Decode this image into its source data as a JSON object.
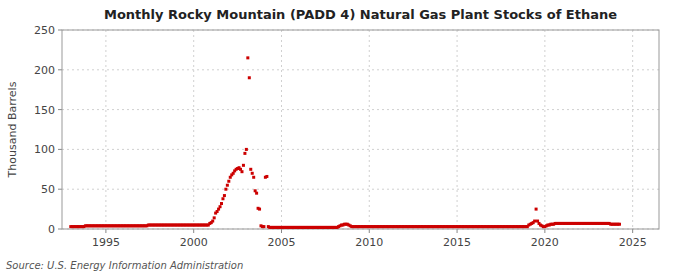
{
  "chart_data": {
    "type": "scatter",
    "title": "Monthly Rocky Mountain (PADD 4) Natural Gas Plant Stocks of Ethane",
    "y_label": "Thousand Barrels",
    "source": "Source: U.S. Energy Information Administration",
    "color": "#CC0000",
    "marker": "square",
    "grid": true,
    "xlim": [
      1992.5,
      2026.5
    ],
    "ylim": [
      0,
      250
    ],
    "xticks": [
      1995,
      2000,
      2005,
      2010,
      2015,
      2020,
      2025
    ],
    "yticks": [
      0,
      50,
      100,
      150,
      200,
      250
    ],
    "x": [
      1993.0,
      1993.083,
      1993.167,
      1993.25,
      1993.333,
      1993.417,
      1993.5,
      1993.583,
      1993.667,
      1993.75,
      1993.833,
      1993.917,
      1994.0,
      1994.083,
      1994.167,
      1994.25,
      1994.333,
      1994.417,
      1994.5,
      1994.583,
      1994.667,
      1994.75,
      1994.833,
      1994.917,
      1995.0,
      1995.083,
      1995.167,
      1995.25,
      1995.333,
      1995.417,
      1995.5,
      1995.583,
      1995.667,
      1995.75,
      1995.833,
      1995.917,
      1996.0,
      1996.083,
      1996.167,
      1996.25,
      1996.333,
      1996.417,
      1996.5,
      1996.583,
      1996.667,
      1996.75,
      1996.833,
      1996.917,
      1997.0,
      1997.083,
      1997.167,
      1997.25,
      1997.333,
      1997.417,
      1997.5,
      1997.583,
      1997.667,
      1997.75,
      1997.833,
      1997.917,
      1998.0,
      1998.083,
      1998.167,
      1998.25,
      1998.333,
      1998.417,
      1998.5,
      1998.583,
      1998.667,
      1998.75,
      1998.833,
      1998.917,
      1999.0,
      1999.083,
      1999.167,
      1999.25,
      1999.333,
      1999.417,
      1999.5,
      1999.583,
      1999.667,
      1999.75,
      1999.833,
      1999.917,
      2000.0,
      2000.083,
      2000.167,
      2000.25,
      2000.333,
      2000.417,
      2000.5,
      2000.583,
      2000.667,
      2000.75,
      2000.833,
      2000.917,
      2001.0,
      2001.083,
      2001.167,
      2001.25,
      2001.333,
      2001.417,
      2001.5,
      2001.583,
      2001.667,
      2001.75,
      2001.833,
      2001.917,
      2002.0,
      2002.083,
      2002.167,
      2002.25,
      2002.333,
      2002.417,
      2002.5,
      2002.583,
      2002.667,
      2002.75,
      2002.833,
      2002.917,
      2003.0,
      2003.083,
      2003.167,
      2003.25,
      2003.333,
      2003.417,
      2003.5,
      2003.583,
      2003.667,
      2003.75,
      2003.833,
      2003.917,
      2004.0,
      2004.083,
      2004.167,
      2004.25,
      2004.333,
      2004.417,
      2004.5,
      2004.583,
      2004.667,
      2004.75,
      2004.833,
      2004.917,
      2005.0,
      2005.083,
      2005.167,
      2005.25,
      2005.333,
      2005.417,
      2005.5,
      2005.583,
      2005.667,
      2005.75,
      2005.833,
      2005.917,
      2006.0,
      2006.083,
      2006.167,
      2006.25,
      2006.333,
      2006.417,
      2006.5,
      2006.583,
      2006.667,
      2006.75,
      2006.833,
      2006.917,
      2007.0,
      2007.083,
      2007.167,
      2007.25,
      2007.333,
      2007.417,
      2007.5,
      2007.583,
      2007.667,
      2007.75,
      2007.833,
      2007.917,
      2008.0,
      2008.083,
      2008.167,
      2008.25,
      2008.333,
      2008.417,
      2008.5,
      2008.583,
      2008.667,
      2008.75,
      2008.833,
      2008.917,
      2009.0,
      2009.083,
      2009.167,
      2009.25,
      2009.333,
      2009.417,
      2009.5,
      2009.583,
      2009.667,
      2009.75,
      2009.833,
      2009.917,
      2010.0,
      2010.083,
      2010.167,
      2010.25,
      2010.333,
      2010.417,
      2010.5,
      2010.583,
      2010.667,
      2010.75,
      2010.833,
      2010.917,
      2011.0,
      2011.083,
      2011.167,
      2011.25,
      2011.333,
      2011.417,
      2011.5,
      2011.583,
      2011.667,
      2011.75,
      2011.833,
      2011.917,
      2012.0,
      2012.083,
      2012.167,
      2012.25,
      2012.333,
      2012.417,
      2012.5,
      2012.583,
      2012.667,
      2012.75,
      2012.833,
      2012.917,
      2013.0,
      2013.083,
      2013.167,
      2013.25,
      2013.333,
      2013.417,
      2013.5,
      2013.583,
      2013.667,
      2013.75,
      2013.833,
      2013.917,
      2014.0,
      2014.083,
      2014.167,
      2014.25,
      2014.333,
      2014.417,
      2014.5,
      2014.583,
      2014.667,
      2014.75,
      2014.833,
      2014.917,
      2015.0,
      2015.083,
      2015.167,
      2015.25,
      2015.333,
      2015.417,
      2015.5,
      2015.583,
      2015.667,
      2015.75,
      2015.833,
      2015.917,
      2016.0,
      2016.083,
      2016.167,
      2016.25,
      2016.333,
      2016.417,
      2016.5,
      2016.583,
      2016.667,
      2016.75,
      2016.833,
      2016.917,
      2017.0,
      2017.083,
      2017.167,
      2017.25,
      2017.333,
      2017.417,
      2017.5,
      2017.583,
      2017.667,
      2017.75,
      2017.833,
      2017.917,
      2018.0,
      2018.083,
      2018.167,
      2018.25,
      2018.333,
      2018.417,
      2018.5,
      2018.583,
      2018.667,
      2018.75,
      2018.833,
      2018.917,
      2019.0,
      2019.083,
      2019.167,
      2019.25,
      2019.333,
      2019.417,
      2019.5,
      2019.583,
      2019.667,
      2019.75,
      2019.833,
      2019.917,
      2020.0,
      2020.083,
      2020.167,
      2020.25,
      2020.333,
      2020.417,
      2020.5,
      2020.583,
      2020.667,
      2020.75,
      2020.833,
      2020.917,
      2021.0,
      2021.083,
      2021.167,
      2021.25,
      2021.333,
      2021.417,
      2021.5,
      2021.583,
      2021.667,
      2021.75,
      2021.833,
      2021.917,
      2022.0,
      2022.083,
      2022.167,
      2022.25,
      2022.333,
      2022.417,
      2022.5,
      2022.583,
      2022.667,
      2022.75,
      2022.833,
      2022.917,
      2023.0,
      2023.083,
      2023.167,
      2023.25,
      2023.333,
      2023.417,
      2023.5,
      2023.583,
      2023.667,
      2023.75,
      2023.833,
      2023.917,
      2024.0,
      2024.083,
      2024.167,
      2024.25
    ],
    "values": [
      3,
      3,
      3,
      3,
      3,
      3,
      3,
      3,
      3,
      3,
      4,
      4,
      4,
      4,
      4,
      4,
      4,
      4,
      4,
      4,
      4,
      4,
      4,
      4,
      4,
      4,
      4,
      4,
      4,
      4,
      4,
      4,
      4,
      4,
      4,
      4,
      4,
      4,
      4,
      4,
      4,
      4,
      4,
      4,
      4,
      4,
      4,
      4,
      4,
      4,
      4,
      4,
      4,
      5,
      5,
      5,
      5,
      5,
      5,
      5,
      5,
      5,
      5,
      5,
      5,
      5,
      5,
      5,
      5,
      5,
      5,
      5,
      5,
      5,
      5,
      5,
      5,
      5,
      5,
      5,
      5,
      5,
      5,
      5,
      5,
      5,
      5,
      5,
      5,
      5,
      5,
      5,
      5,
      5,
      5,
      7,
      8,
      10,
      14,
      20,
      22,
      25,
      28,
      32,
      38,
      42,
      50,
      55,
      60,
      65,
      68,
      70,
      73,
      75,
      76,
      77,
      75,
      72,
      80,
      95,
      100,
      215,
      190,
      75,
      70,
      65,
      48,
      45,
      26,
      25,
      4,
      3,
      3,
      65,
      66,
      3,
      2,
      2,
      2,
      2,
      2,
      2,
      2,
      2,
      2,
      2,
      2,
      2,
      2,
      2,
      2,
      2,
      2,
      2,
      2,
      2,
      2,
      2,
      2,
      2,
      2,
      2,
      2,
      2,
      2,
      2,
      2,
      2,
      2,
      2,
      2,
      2,
      2,
      2,
      2,
      2,
      2,
      2,
      2,
      2,
      2,
      2,
      2,
      3,
      4,
      5,
      5,
      6,
      6,
      6,
      5,
      4,
      3,
      3,
      3,
      3,
      3,
      3,
      3,
      3,
      3,
      3,
      3,
      3,
      3,
      3,
      3,
      3,
      3,
      3,
      3,
      3,
      3,
      3,
      3,
      3,
      3,
      3,
      3,
      3,
      3,
      3,
      3,
      3,
      3,
      3,
      3,
      3,
      3,
      3,
      3,
      3,
      3,
      3,
      3,
      3,
      3,
      3,
      3,
      3,
      3,
      3,
      3,
      3,
      3,
      3,
      3,
      3,
      3,
      3,
      3,
      3,
      3,
      3,
      3,
      3,
      3,
      3,
      3,
      3,
      3,
      3,
      3,
      3,
      3,
      3,
      3,
      3,
      3,
      3,
      3,
      3,
      3,
      3,
      3,
      3,
      3,
      3,
      3,
      3,
      3,
      3,
      3,
      3,
      3,
      3,
      3,
      3,
      3,
      3,
      3,
      3,
      3,
      3,
      3,
      3,
      3,
      3,
      3,
      3,
      3,
      3,
      3,
      3,
      3,
      3,
      3,
      3,
      3,
      3,
      3,
      3,
      3,
      5,
      6,
      7,
      8,
      10,
      25,
      10,
      7,
      5,
      4,
      3,
      3,
      4,
      5,
      5,
      6,
      6,
      6,
      7,
      7,
      7,
      7,
      7,
      7,
      7,
      7,
      7,
      7,
      7,
      7,
      7,
      7,
      7,
      7,
      7,
      7,
      7,
      7,
      7,
      7,
      7,
      7,
      7,
      7,
      7,
      7,
      7,
      7,
      7,
      7,
      7,
      7,
      7,
      7,
      7,
      7,
      6,
      6,
      6,
      6,
      6,
      6,
      6
    ]
  }
}
